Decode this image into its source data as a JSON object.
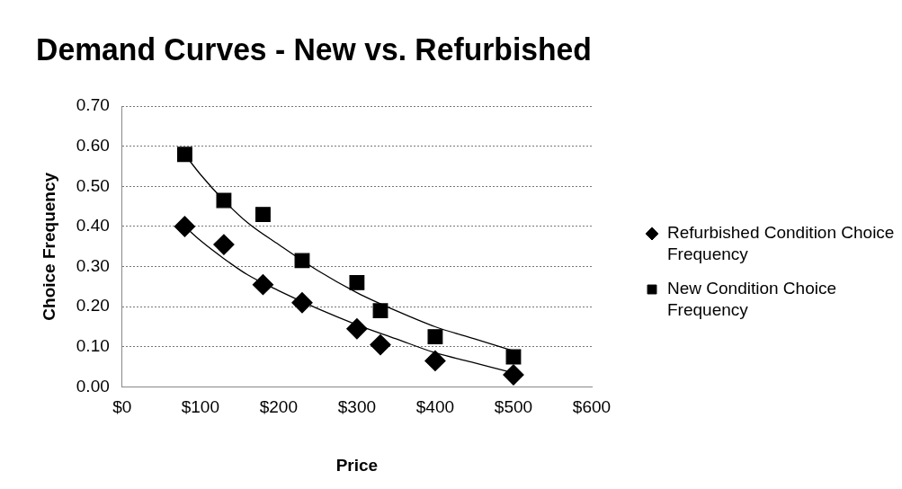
{
  "chart_data": {
    "type": "scatter",
    "title": "Demand Curves - New vs. Refurbished",
    "xlabel": "Price",
    "ylabel": "Choice Frequency",
    "xlim": [
      0,
      600
    ],
    "xticks": [
      {
        "value": 0,
        "label": "$0"
      },
      {
        "value": 100,
        "label": "$100"
      },
      {
        "value": 200,
        "label": "$200"
      },
      {
        "value": 300,
        "label": "$300"
      },
      {
        "value": 400,
        "label": "$400"
      },
      {
        "value": 500,
        "label": "$500"
      },
      {
        "value": 600,
        "label": "$600"
      }
    ],
    "ylim": [
      0,
      0.7
    ],
    "yticks": [
      {
        "value": 0,
        "label": "0.00"
      },
      {
        "value": 0.1,
        "label": "0.10"
      },
      {
        "value": 0.2,
        "label": "0.20"
      },
      {
        "value": 0.3,
        "label": "0.30"
      },
      {
        "value": 0.4,
        "label": "0.40"
      },
      {
        "value": 0.5,
        "label": "0.50"
      },
      {
        "value": 0.6,
        "label": "0.60"
      },
      {
        "value": 0.7,
        "label": "0.70"
      }
    ],
    "grid": "y",
    "legend": "right",
    "series": [
      {
        "name": "Refurbished Condition Choice Frequency",
        "color": "#000000",
        "marker": "diamond",
        "x": [
          80,
          130,
          180,
          230,
          300,
          330,
          400,
          500
        ],
        "values": [
          0.4,
          0.355,
          0.255,
          0.21,
          0.145,
          0.105,
          0.065,
          0.03
        ]
      },
      {
        "name": "New Condition Choice Frequency",
        "color": "#000000",
        "marker": "square",
        "x": [
          80,
          130,
          180,
          230,
          300,
          330,
          400,
          500
        ],
        "values": [
          0.58,
          0.465,
          0.43,
          0.315,
          0.26,
          0.19,
          0.125,
          0.075
        ]
      },
      {
        "type": "line",
        "color": "#000000",
        "marker": "none",
        "x": [
          80,
          100,
          130,
          160,
          200,
          250,
          300,
          350,
          400,
          450,
          500
        ],
        "values": [
          0.4,
          0.365,
          0.32,
          0.28,
          0.24,
          0.195,
          0.155,
          0.12,
          0.085,
          0.06,
          0.035
        ]
      },
      {
        "type": "line",
        "color": "#000000",
        "marker": "none",
        "x": [
          80,
          100,
          130,
          160,
          200,
          250,
          300,
          350,
          400,
          450,
          500
        ],
        "values": [
          0.58,
          0.53,
          0.465,
          0.41,
          0.355,
          0.29,
          0.235,
          0.19,
          0.15,
          0.12,
          0.09
        ]
      }
    ]
  }
}
